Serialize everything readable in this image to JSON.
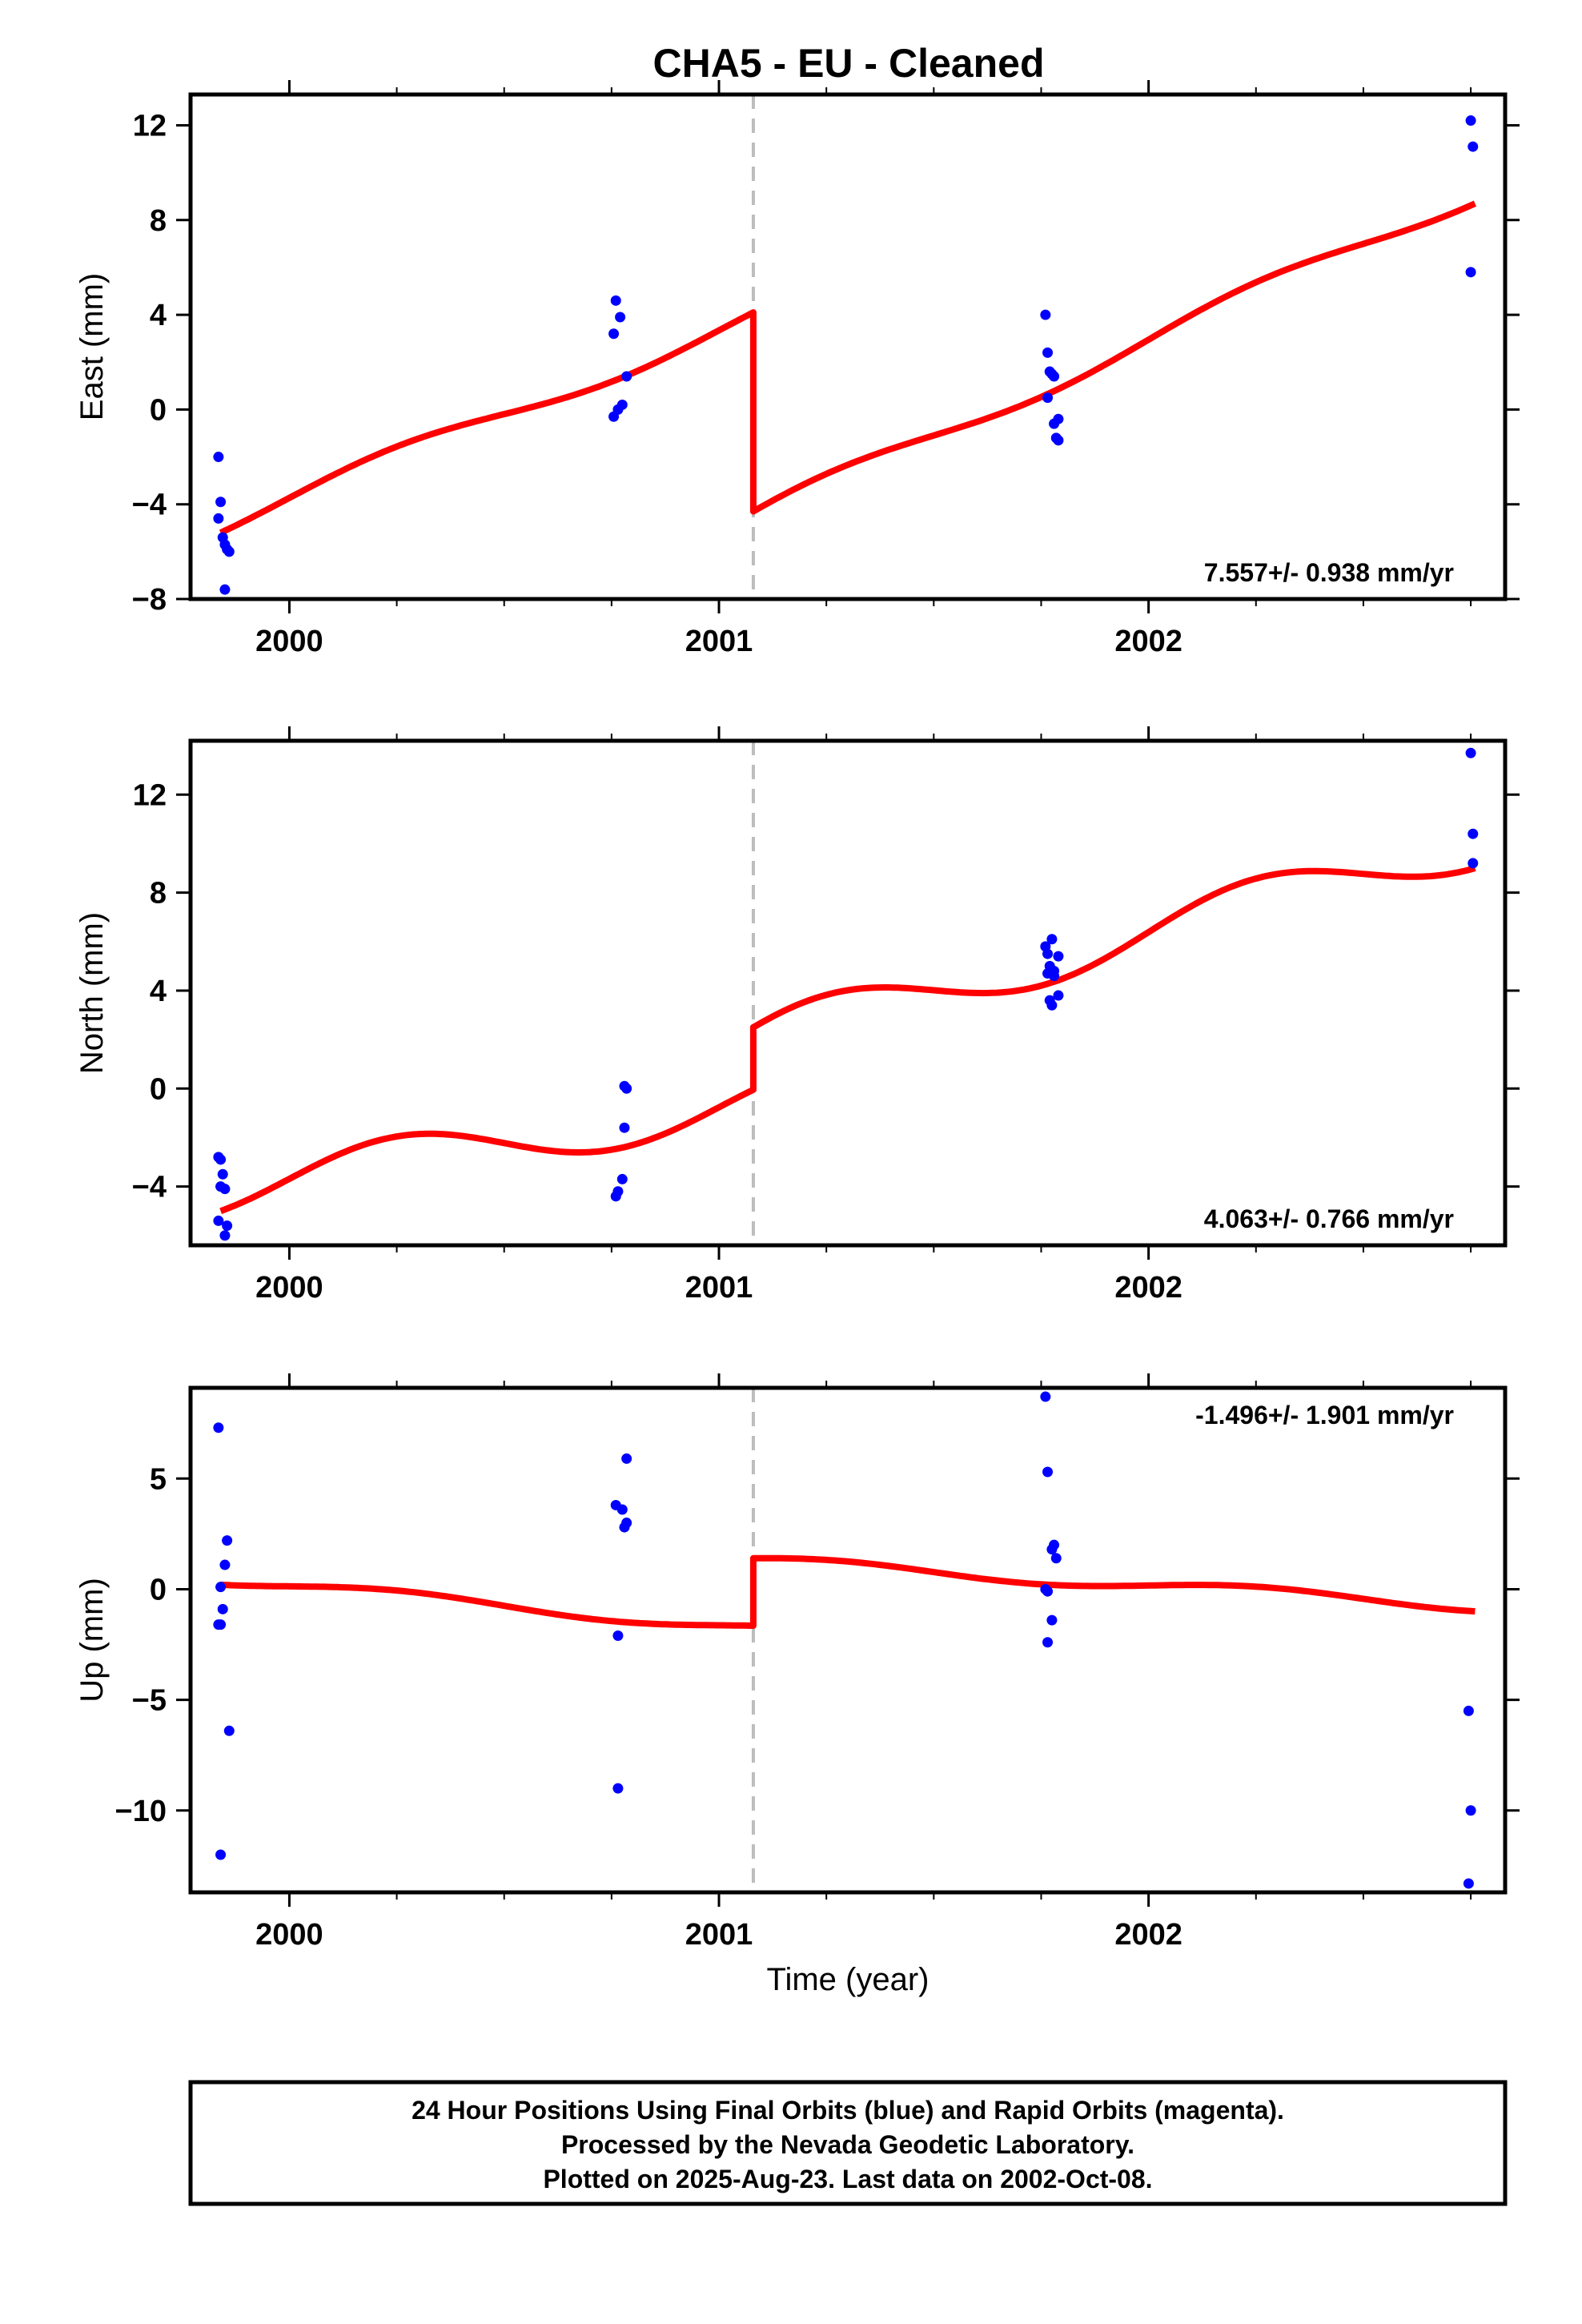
{
  "title": "CHA5  - EU - Cleaned",
  "colors": {
    "model": "#ff0000",
    "points": "#0000ff",
    "event": "#bdbdbd"
  },
  "chart_data": [
    {
      "type": "scatter",
      "ylabel": "East (mm)",
      "xlabel": "",
      "xlim": [
        1999.77,
        2002.83
      ],
      "ylim": [
        -8,
        13.3
      ],
      "xticks": [
        2000,
        2001,
        2002
      ],
      "yticks": [
        12,
        8,
        4,
        0,
        -4,
        -8
      ],
      "rate": "7.557+/- 0.938 mm/yr",
      "rate_position": "bottom-right",
      "event_x": 2001.08,
      "points": [
        [
          1999.835,
          -2
        ],
        [
          1999.84,
          -3.9
        ],
        [
          1999.835,
          -4.6
        ],
        [
          1999.845,
          -5.4
        ],
        [
          1999.85,
          -5.7
        ],
        [
          1999.855,
          -5.9
        ],
        [
          1999.86,
          -6.0
        ],
        [
          1999.85,
          -7.6
        ],
        [
          2000.76,
          4.6
        ],
        [
          2000.77,
          3.9
        ],
        [
          2000.755,
          3.2
        ],
        [
          2000.785,
          1.4
        ],
        [
          2000.775,
          0.2
        ],
        [
          2000.765,
          0
        ],
        [
          2000.755,
          -0.3
        ],
        [
          2001.76,
          4.0
        ],
        [
          2001.765,
          2.4
        ],
        [
          2001.77,
          1.6
        ],
        [
          2001.775,
          1.5
        ],
        [
          2001.78,
          1.4
        ],
        [
          2001.765,
          0.5
        ],
        [
          2001.79,
          -0.4
        ],
        [
          2001.78,
          -0.6
        ],
        [
          2001.785,
          -1.2
        ],
        [
          2001.79,
          -1.3
        ],
        [
          2002.75,
          12.2
        ],
        [
          2002.755,
          11.1
        ],
        [
          2002.75,
          5.8
        ]
      ],
      "model_pre": {
        "x0": 1999.84,
        "y0": -5.2,
        "x1": 2001.08,
        "y1": 4.1,
        "amp": 0.4
      },
      "model_post": {
        "x0": 2001.08,
        "y0": -4.3,
        "x1": 2002.76,
        "y1": 8.7,
        "amp": 0.4
      }
    },
    {
      "type": "scatter",
      "ylabel": "North (mm)",
      "xlabel": "",
      "xlim": [
        1999.77,
        2002.83
      ],
      "ylim": [
        -6.4,
        14.2
      ],
      "xticks": [
        2000,
        2001,
        2002
      ],
      "yticks": [
        12,
        8,
        4,
        0,
        -4
      ],
      "rate": "4.063+/- 0.766 mm/yr",
      "rate_position": "bottom-right",
      "event_x": 2001.08,
      "points": [
        [
          1999.835,
          -2.8
        ],
        [
          1999.84,
          -2.9
        ],
        [
          1999.845,
          -3.5
        ],
        [
          1999.84,
          -4.0
        ],
        [
          1999.85,
          -4.1
        ],
        [
          1999.835,
          -5.4
        ],
        [
          1999.855,
          -5.6
        ],
        [
          1999.85,
          -6.0
        ],
        [
          2000.78,
          0.1
        ],
        [
          2000.785,
          0
        ],
        [
          2000.78,
          -1.6
        ],
        [
          2000.775,
          -3.7
        ],
        [
          2000.765,
          -4.2
        ],
        [
          2000.76,
          -4.4
        ],
        [
          2001.76,
          5.8
        ],
        [
          2001.775,
          6.1
        ],
        [
          2001.765,
          5.5
        ],
        [
          2001.79,
          5.4
        ],
        [
          2001.77,
          5.0
        ],
        [
          2001.78,
          4.8
        ],
        [
          2001.765,
          4.7
        ],
        [
          2001.78,
          4.6
        ],
        [
          2001.79,
          3.8
        ],
        [
          2001.77,
          3.6
        ],
        [
          2001.775,
          3.4
        ],
        [
          2002.75,
          13.7
        ],
        [
          2002.755,
          10.4
        ],
        [
          2002.755,
          9.2
        ]
      ],
      "model_pre": {
        "x0": 1999.84,
        "y0": -5.0,
        "x1": 2001.08,
        "y1": -0.05,
        "amp": 1.0
      },
      "model_post": {
        "x0": 2001.08,
        "y0": 2.5,
        "x1": 2002.76,
        "y1": 9.0,
        "amp": 1.0
      }
    },
    {
      "type": "scatter",
      "ylabel": "Up (mm)",
      "xlabel": "Time (year)",
      "xlim": [
        1999.77,
        2002.83
      ],
      "ylim": [
        -13.7,
        9.1
      ],
      "xticks": [
        2000,
        2001,
        2002
      ],
      "yticks": [
        5,
        0,
        -5,
        -10
      ],
      "rate": "-1.496+/- 1.901 mm/yr",
      "rate_position": "top-right",
      "event_x": 2001.08,
      "points": [
        [
          1999.835,
          7.3
        ],
        [
          1999.855,
          2.2
        ],
        [
          1999.85,
          1.1
        ],
        [
          1999.84,
          0.1
        ],
        [
          1999.845,
          -0.9
        ],
        [
          1999.835,
          -1.6
        ],
        [
          1999.84,
          -1.6
        ],
        [
          1999.86,
          -6.4
        ],
        [
          1999.84,
          -12.0
        ],
        [
          2000.785,
          5.9
        ],
        [
          2000.76,
          3.8
        ],
        [
          2000.775,
          3.6
        ],
        [
          2000.785,
          3.0
        ],
        [
          2000.78,
          2.8
        ],
        [
          2000.765,
          -2.1
        ],
        [
          2000.765,
          -9.0
        ],
        [
          2001.76,
          8.7
        ],
        [
          2001.765,
          5.3
        ],
        [
          2001.78,
          2.0
        ],
        [
          2001.775,
          1.8
        ],
        [
          2001.785,
          1.4
        ],
        [
          2001.76,
          0
        ],
        [
          2001.765,
          -0.1
        ],
        [
          2001.775,
          -1.4
        ],
        [
          2001.765,
          -2.4
        ],
        [
          2002.745,
          -5.5
        ],
        [
          2002.75,
          -10.0
        ],
        [
          2002.745,
          -13.3
        ]
      ],
      "model_pre": {
        "x0": 1999.84,
        "y0": 0.2,
        "x1": 2001.08,
        "y1": -1.65,
        "amp": 0.25
      },
      "model_post": {
        "x0": 2001.08,
        "y0": 1.4,
        "x1": 2002.76,
        "y1": -1.0,
        "amp": 0.25
      }
    }
  ],
  "footer": {
    "line1": "24 Hour Positions Using Final Orbits (blue) and Rapid Orbits (magenta).",
    "line2": "Processed by the Nevada Geodetic Laboratory.",
    "line3": "Plotted on 2025-Aug-23. Last data on 2002-Oct-08."
  }
}
